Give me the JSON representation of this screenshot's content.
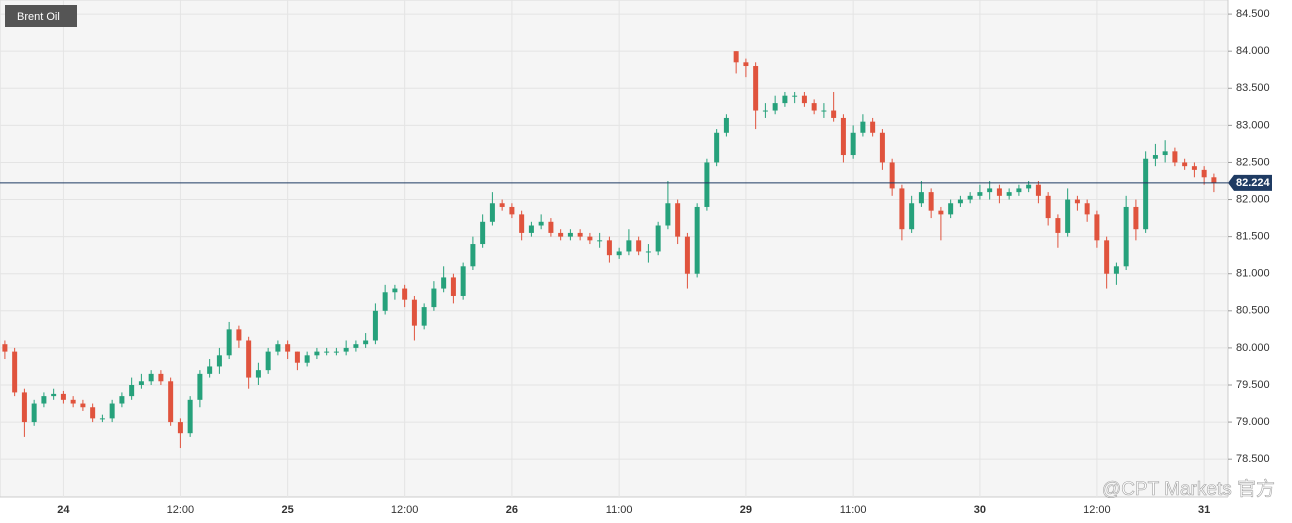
{
  "chart_data": {
    "type": "candlestick",
    "title": "Brent Oil",
    "watermark": "@CPT Markets 官方",
    "categories": [
      null,
      null,
      null,
      null,
      null,
      null,
      "24",
      null,
      null,
      null,
      null,
      null,
      null,
      null,
      null,
      null,
      null,
      null,
      "12:00",
      null,
      null,
      null,
      null,
      null,
      null,
      null,
      null,
      null,
      null,
      "25",
      null,
      null,
      null,
      null,
      null,
      null,
      null,
      null,
      null,
      null,
      null,
      "12:00",
      null,
      null,
      null,
      null,
      null,
      null,
      null,
      null,
      null,
      null,
      "26",
      null,
      null,
      null,
      null,
      null,
      null,
      null,
      null,
      null,
      null,
      "11:00",
      null,
      null,
      null,
      null,
      null,
      null,
      null,
      null,
      null,
      null,
      null,
      null,
      "29",
      null,
      null,
      null,
      null,
      null,
      null,
      null,
      null,
      null,
      null,
      "11:00",
      null,
      null,
      null,
      null,
      null,
      null,
      null,
      null,
      null,
      null,
      null,
      null,
      "30",
      null,
      null,
      null,
      null,
      null,
      null,
      null,
      null,
      null,
      null,
      null,
      "12:00",
      null,
      null,
      null,
      null,
      null,
      null,
      null,
      null,
      null,
      null,
      "31",
      null
    ],
    "open": [
      80.05,
      79.95,
      79.4,
      79.0,
      79.25,
      79.35,
      79.38,
      79.3,
      79.25,
      79.2,
      79.05,
      79.05,
      79.25,
      79.35,
      79.5,
      79.55,
      79.65,
      79.55,
      79.0,
      78.85,
      79.3,
      79.65,
      79.75,
      79.9,
      80.25,
      80.1,
      79.6,
      79.7,
      79.95,
      80.05,
      79.95,
      79.8,
      79.9,
      79.95,
      79.95,
      79.95,
      80.0,
      80.05,
      80.1,
      80.5,
      80.75,
      80.8,
      80.65,
      80.3,
      80.55,
      80.8,
      80.95,
      80.7,
      81.1,
      81.4,
      81.7,
      81.95,
      81.9,
      81.8,
      81.55,
      81.65,
      81.7,
      81.55,
      81.5,
      81.55,
      81.5,
      81.45,
      81.45,
      81.25,
      81.3,
      81.45,
      81.3,
      81.3,
      81.65,
      81.95,
      81.5,
      81.0,
      81.9,
      82.5,
      82.9,
      84.0,
      83.85,
      83.8,
      83.2,
      83.2,
      83.3,
      83.4,
      83.4,
      83.3,
      83.2,
      83.2,
      83.1,
      82.6,
      82.9,
      83.05,
      82.9,
      82.5,
      82.15,
      81.6,
      81.95,
      82.1,
      81.85,
      81.8,
      81.95,
      82.0,
      82.05,
      82.1,
      82.15,
      82.05,
      82.1,
      82.15,
      82.2,
      82.05,
      81.75,
      81.55,
      82.0,
      81.95,
      81.8,
      81.45,
      81.0,
      81.1,
      81.9,
      81.6,
      82.55,
      82.6,
      82.65,
      82.5,
      82.45,
      82.4,
      82.3
    ],
    "high": [
      80.1,
      80.0,
      79.45,
      79.3,
      79.4,
      79.45,
      79.42,
      79.35,
      79.3,
      79.25,
      79.1,
      79.3,
      79.4,
      79.6,
      79.65,
      79.7,
      79.7,
      79.6,
      79.05,
      79.35,
      79.7,
      79.85,
      80.0,
      80.35,
      80.3,
      80.15,
      79.8,
      80.0,
      80.1,
      80.1,
      79.95,
      79.95,
      80.0,
      80.0,
      80.0,
      80.1,
      80.1,
      80.2,
      80.6,
      80.85,
      80.85,
      80.85,
      80.7,
      80.6,
      80.9,
      81.1,
      81.0,
      81.15,
      81.5,
      81.8,
      82.1,
      82.0,
      81.95,
      81.85,
      81.7,
      81.8,
      81.75,
      81.6,
      81.6,
      81.6,
      81.55,
      81.55,
      81.5,
      81.35,
      81.6,
      81.5,
      81.4,
      81.7,
      82.25,
      82.0,
      81.55,
      81.95,
      82.55,
      82.95,
      83.15,
      84.0,
      83.9,
      83.85,
      83.3,
      83.4,
      83.45,
      83.45,
      83.45,
      83.35,
      83.3,
      83.45,
      83.15,
      83.0,
      83.15,
      83.1,
      82.95,
      82.55,
      82.2,
      82.05,
      82.25,
      82.15,
      81.9,
      82.0,
      82.05,
      82.1,
      82.2,
      82.25,
      82.2,
      82.15,
      82.2,
      82.25,
      82.25,
      82.1,
      81.8,
      82.15,
      82.05,
      82.0,
      81.85,
      81.5,
      81.15,
      82.05,
      82.0,
      82.65,
      82.75,
      82.8,
      82.7,
      82.55,
      82.5,
      82.45,
      82.35
    ],
    "low": [
      79.85,
      79.35,
      78.8,
      78.95,
      79.2,
      79.3,
      79.25,
      79.2,
      79.15,
      79.0,
      79.0,
      79.0,
      79.2,
      79.3,
      79.45,
      79.5,
      79.5,
      78.95,
      78.65,
      78.8,
      79.2,
      79.6,
      79.65,
      79.85,
      80.0,
      79.45,
      79.5,
      79.65,
      79.9,
      79.85,
      79.7,
      79.75,
      79.85,
      79.9,
      79.9,
      79.9,
      79.95,
      80.0,
      80.05,
      80.45,
      80.65,
      80.55,
      80.1,
      80.25,
      80.5,
      80.75,
      80.6,
      80.65,
      81.05,
      81.35,
      81.65,
      81.85,
      81.75,
      81.45,
      81.5,
      81.6,
      81.5,
      81.45,
      81.45,
      81.45,
      81.4,
      81.35,
      81.15,
      81.2,
      81.25,
      81.25,
      81.15,
      81.25,
      81.6,
      81.4,
      80.8,
      80.95,
      81.85,
      82.45,
      82.85,
      83.7,
      83.65,
      82.95,
      83.1,
      83.15,
      83.25,
      83.3,
      83.25,
      83.15,
      83.1,
      83.05,
      82.5,
      82.55,
      82.85,
      82.85,
      82.4,
      82.05,
      81.45,
      81.55,
      81.9,
      81.75,
      81.45,
      81.75,
      81.9,
      81.95,
      82.0,
      82.0,
      81.95,
      82.0,
      82.05,
      82.1,
      81.95,
      81.65,
      81.35,
      81.5,
      81.85,
      81.7,
      81.35,
      80.8,
      80.85,
      81.05,
      81.45,
      81.55,
      82.45,
      82.5,
      82.45,
      82.4,
      82.3,
      82.2,
      82.1
    ],
    "close": [
      79.95,
      79.4,
      79.0,
      79.25,
      79.35,
      79.38,
      79.3,
      79.25,
      79.2,
      79.05,
      79.05,
      79.25,
      79.35,
      79.5,
      79.55,
      79.65,
      79.55,
      79.0,
      78.85,
      79.3,
      79.65,
      79.75,
      79.9,
      80.25,
      80.1,
      79.6,
      79.7,
      79.95,
      80.05,
      79.95,
      79.8,
      79.9,
      79.95,
      79.95,
      79.95,
      80.0,
      80.05,
      80.1,
      80.5,
      80.75,
      80.8,
      80.65,
      80.3,
      80.55,
      80.8,
      80.95,
      80.7,
      81.1,
      81.4,
      81.7,
      81.95,
      81.9,
      81.8,
      81.55,
      81.65,
      81.7,
      81.55,
      81.5,
      81.55,
      81.5,
      81.45,
      81.45,
      81.25,
      81.3,
      81.45,
      81.3,
      81.3,
      81.65,
      81.95,
      81.5,
      81.0,
      81.9,
      82.5,
      82.9,
      83.1,
      83.85,
      83.8,
      83.2,
      83.2,
      83.3,
      83.4,
      83.4,
      83.3,
      83.2,
      83.2,
      83.1,
      82.6,
      82.9,
      83.05,
      82.9,
      82.5,
      82.15,
      81.6,
      81.95,
      82.1,
      81.85,
      81.8,
      81.95,
      82.0,
      82.05,
      82.1,
      82.15,
      82.05,
      82.1,
      82.15,
      82.2,
      82.05,
      81.75,
      81.55,
      82.0,
      81.95,
      81.8,
      81.45,
      81.0,
      81.1,
      81.9,
      81.6,
      82.55,
      82.6,
      82.65,
      82.5,
      82.45,
      82.4,
      82.3,
      82.224
    ],
    "up_color": "#26a17b",
    "down_color": "#e0533d",
    "last_price": 82.224,
    "last_price_color": "#1f3b63",
    "ylim": [
      77.99,
      84.69
    ],
    "yticks": [
      {
        "value": 78.5,
        "label": "78.500"
      },
      {
        "value": 79,
        "label": "79.000"
      },
      {
        "value": 79.5,
        "label": "79.500"
      },
      {
        "value": 80,
        "label": "80.000"
      },
      {
        "value": 80.5,
        "label": "80.500"
      },
      {
        "value": 81,
        "label": "81.000"
      },
      {
        "value": 81.5,
        "label": "81.500"
      },
      {
        "value": 82,
        "label": "82.000"
      },
      {
        "value": 82.5,
        "label": "82.500"
      },
      {
        "value": 83,
        "label": "83.000"
      },
      {
        "value": 83.5,
        "label": "83.500"
      },
      {
        "value": 84,
        "label": "84.000"
      },
      {
        "value": 84.5,
        "label": "84.500"
      }
    ],
    "grid": true
  }
}
